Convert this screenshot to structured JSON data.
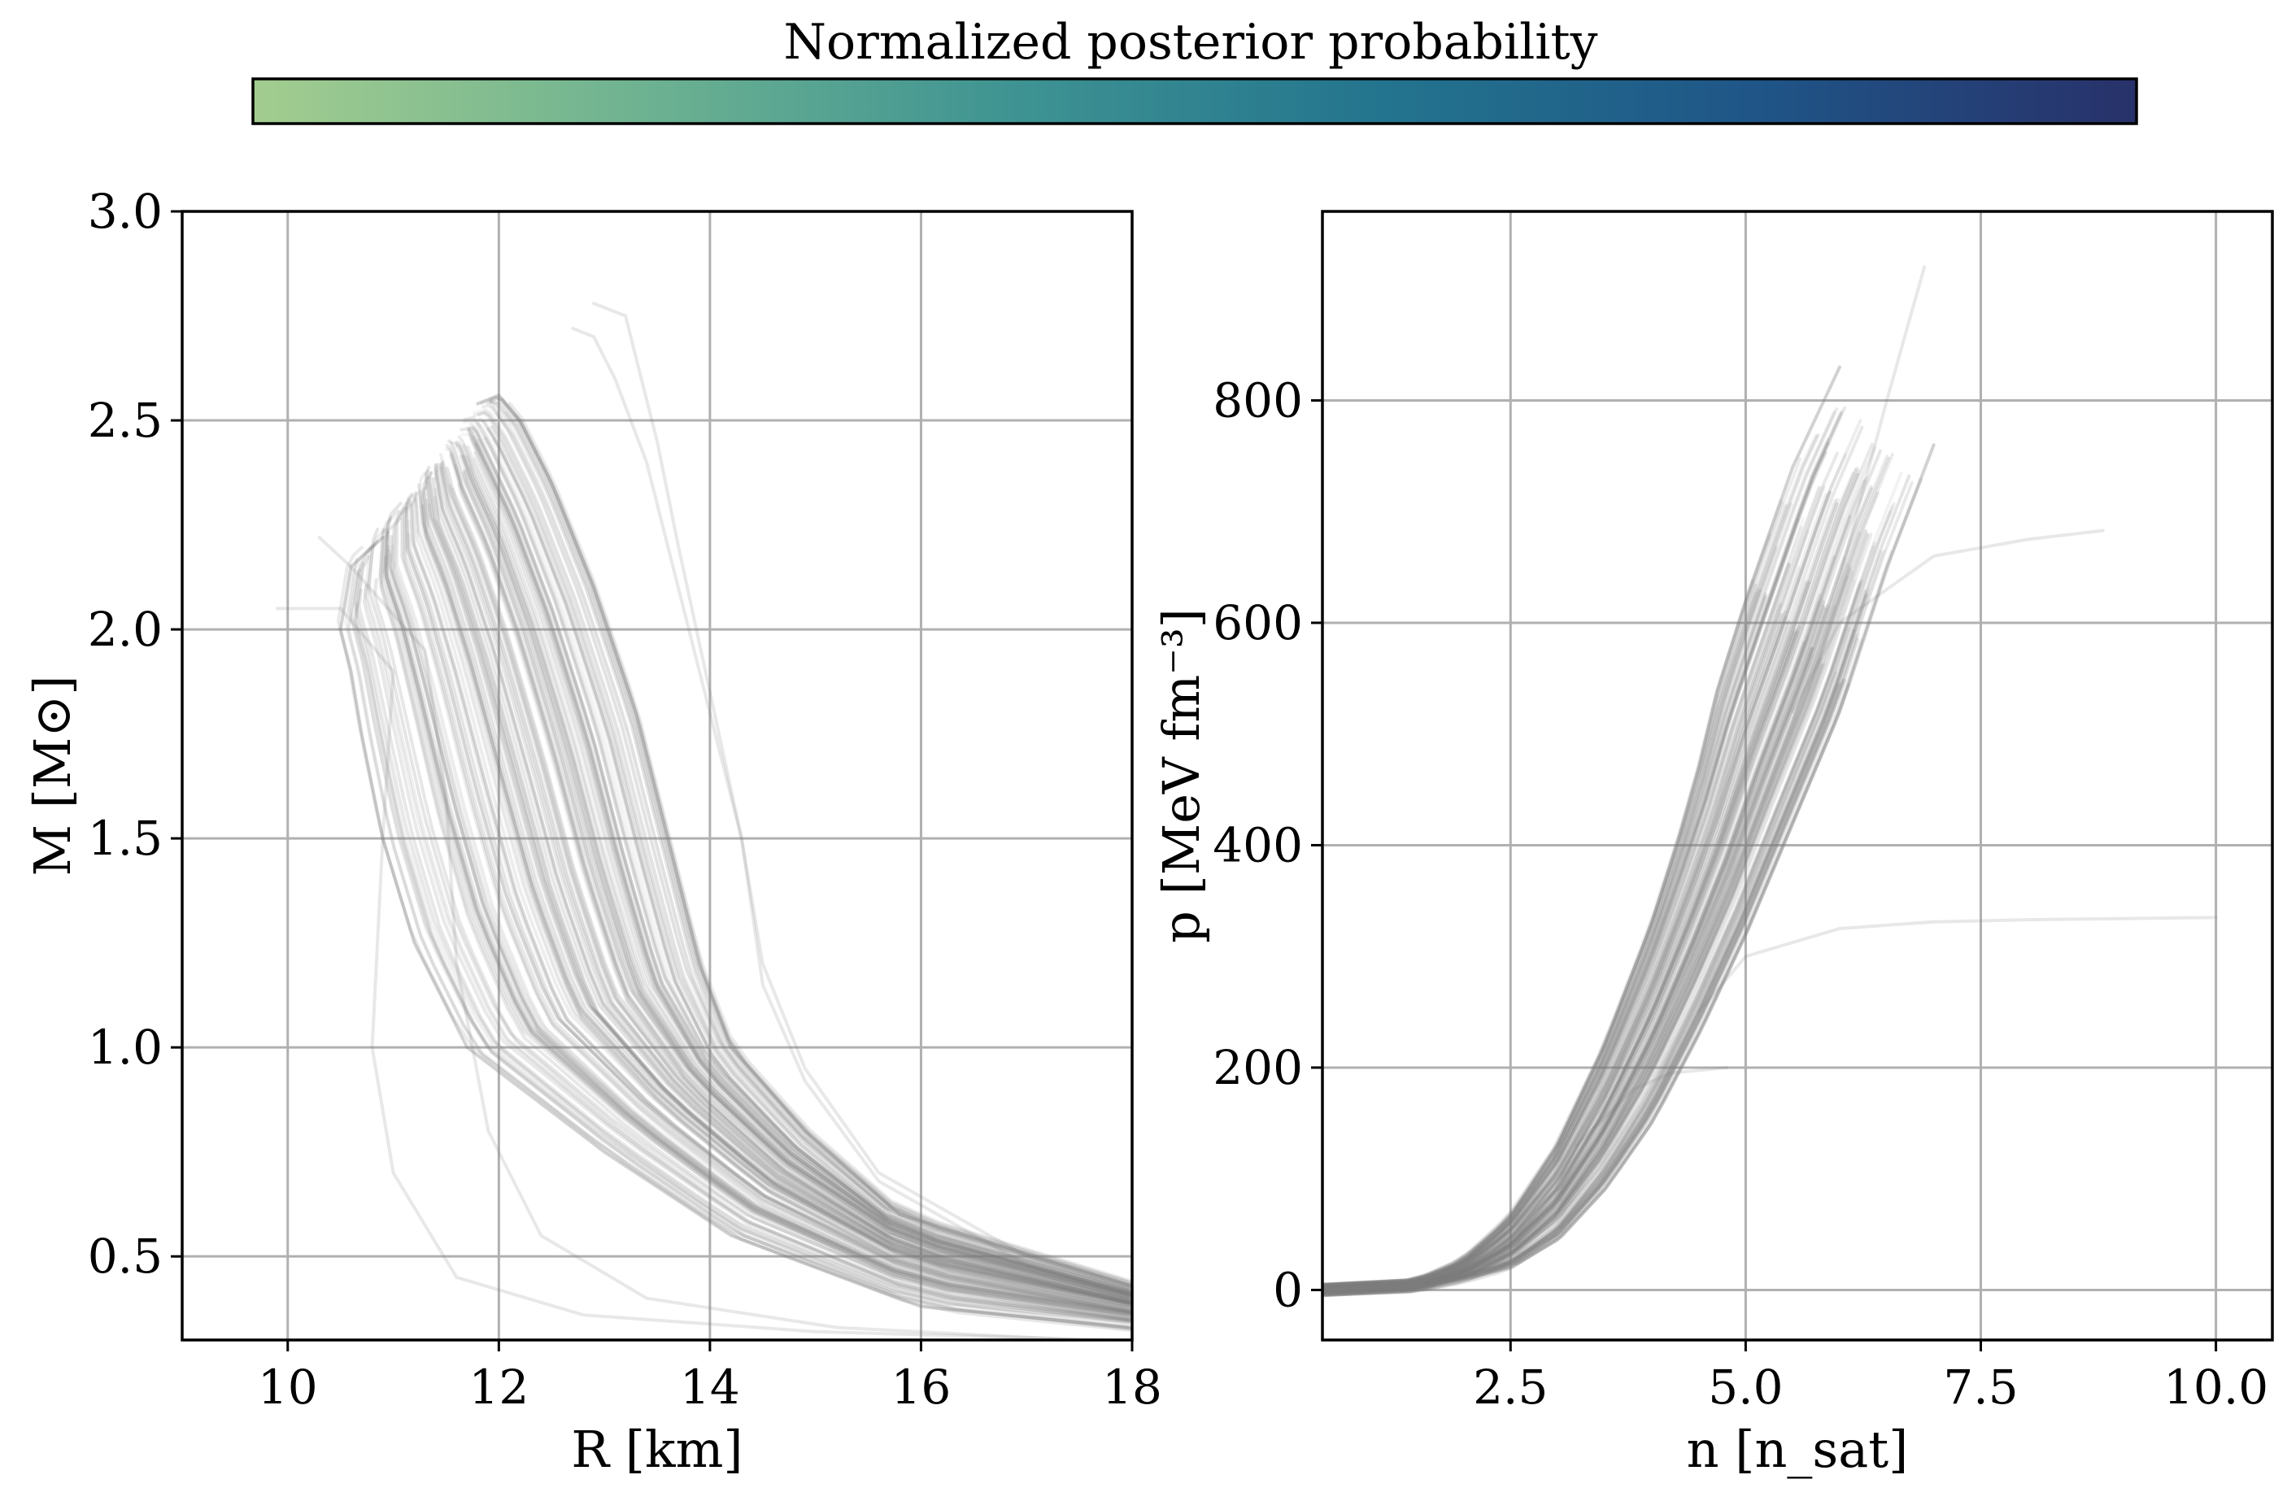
{
  "colorbar": {
    "title": "Normalized posterior probability",
    "colors": [
      "#a3cd8f",
      "#6fb391",
      "#3f9492",
      "#23748e",
      "#1f5587",
      "#28316a"
    ]
  },
  "chart_data": [
    {
      "type": "line",
      "panel": "mass-radius",
      "xlabel": "R [km]",
      "ylabel": "M [M⊙]",
      "xlim": [
        9,
        18
      ],
      "ylim": [
        0.3,
        3.0
      ],
      "xticks": [
        "10",
        "12",
        "14",
        "16",
        "18"
      ],
      "yticks": [
        "0.5",
        "1.0",
        "1.5",
        "2.0",
        "2.5",
        "3.0"
      ],
      "xtick_values": [
        10,
        12,
        14,
        16,
        18
      ],
      "ytick_values": [
        0.5,
        1.0,
        1.5,
        2.0,
        2.5,
        3.0
      ],
      "grid": true,
      "line_color": "#7f7f7f",
      "n_curves": 140,
      "series": [
        {
          "x": [
            18.0,
            16.0,
            14.2,
            13.0,
            11.7,
            11.2,
            10.9,
            10.7,
            10.6,
            10.5,
            10.6,
            10.9
          ],
          "y": [
            0.33,
            0.38,
            0.55,
            0.75,
            1.0,
            1.25,
            1.5,
            1.75,
            1.9,
            2.0,
            2.15,
            2.22
          ]
        },
        {
          "x": [
            18.0,
            15.8,
            14.9,
            14.2,
            13.9,
            13.6,
            13.3,
            12.9,
            12.5,
            12.2,
            12.0,
            11.8
          ],
          "y": [
            0.43,
            0.6,
            0.8,
            1.0,
            1.2,
            1.5,
            1.8,
            2.1,
            2.35,
            2.5,
            2.56,
            2.54
          ]
        },
        {
          "x": [
            18.0,
            17.0,
            15.6,
            14.9,
            14.5,
            14.3,
            14.0,
            13.7,
            13.4,
            13.1,
            12.9,
            12.7
          ],
          "y": [
            0.42,
            0.5,
            0.7,
            0.95,
            1.2,
            1.5,
            1.8,
            2.1,
            2.4,
            2.6,
            2.7,
            2.72
          ]
        },
        {
          "x": [
            18.0,
            17.0,
            15.6,
            14.9,
            14.5,
            14.3,
            14.0,
            13.7,
            13.5,
            13.3,
            13.2,
            12.9
          ],
          "y": [
            0.41,
            0.48,
            0.68,
            0.92,
            1.15,
            1.5,
            1.85,
            2.2,
            2.45,
            2.65,
            2.75,
            2.78
          ]
        },
        {
          "x": [
            17.8,
            15.0,
            12.8,
            11.6,
            11.0,
            10.8,
            10.9,
            11.0,
            10.5,
            9.9
          ],
          "y": [
            0.3,
            0.32,
            0.36,
            0.45,
            0.7,
            1.0,
            1.5,
            1.9,
            2.05,
            2.05
          ]
        },
        {
          "x": [
            17.5,
            15.2,
            13.4,
            12.4,
            11.9,
            11.6,
            11.5,
            11.3,
            10.6,
            10.3
          ],
          "y": [
            0.3,
            0.33,
            0.4,
            0.55,
            0.8,
            1.2,
            1.6,
            1.95,
            2.15,
            2.22
          ]
        }
      ]
    },
    {
      "type": "line",
      "panel": "pressure-density",
      "xlabel": "n [n_sat]",
      "ylabel": "p [MeV fm⁻³]",
      "xlim": [
        0.5,
        10.6
      ],
      "ylim": [
        -45,
        970
      ],
      "xticks": [
        "2.5",
        "5.0",
        "7.5",
        "10.0"
      ],
      "yticks": [
        "0",
        "200",
        "400",
        "600",
        "800"
      ],
      "xtick_values": [
        2.5,
        5.0,
        7.5,
        10.0
      ],
      "ytick_values": [
        0,
        200,
        400,
        600,
        800
      ],
      "grid": true,
      "line_color": "#7f7f7f",
      "n_curves": 140,
      "series": [
        {
          "x": [
            0.5,
            1.5,
            2.0,
            2.5,
            3.0,
            3.5,
            4.0,
            4.3,
            4.5,
            4.7,
            5.0,
            5.5,
            6.0
          ],
          "y": [
            0,
            5,
            25,
            65,
            130,
            220,
            330,
            410,
            470,
            540,
            620,
            740,
            830
          ]
        },
        {
          "x": [
            0.5,
            1.5,
            2.0,
            2.5,
            3.0,
            3.5,
            4.0,
            4.5,
            5.0,
            5.5,
            6.0,
            6.5,
            7.0
          ],
          "y": [
            0,
            3,
            10,
            20,
            45,
            90,
            150,
            230,
            320,
            420,
            520,
            650,
            760
          ]
        },
        {
          "x": [
            0.5,
            1.5,
            2.0,
            2.5,
            3.0,
            3.5,
            4.0,
            4.5,
            5.0,
            5.5,
            6.0,
            6.5,
            6.9
          ],
          "y": [
            0,
            3,
            12,
            30,
            70,
            130,
            210,
            300,
            400,
            510,
            640,
            800,
            920
          ]
        },
        {
          "x": [
            5.5,
            6.0,
            7.0,
            8.0,
            8.8
          ],
          "y": [
            520,
            600,
            660,
            675,
            683
          ]
        },
        {
          "x": [
            4.5,
            5.0,
            6.0,
            7.0,
            8.0,
            9.0,
            10.0
          ],
          "y": [
            250,
            300,
            325,
            331,
            333,
            334,
            335
          ]
        },
        {
          "x": [
            3.2,
            3.8,
            4.2,
            4.8
          ],
          "y": [
            130,
            180,
            195,
            200
          ]
        }
      ]
    }
  ]
}
